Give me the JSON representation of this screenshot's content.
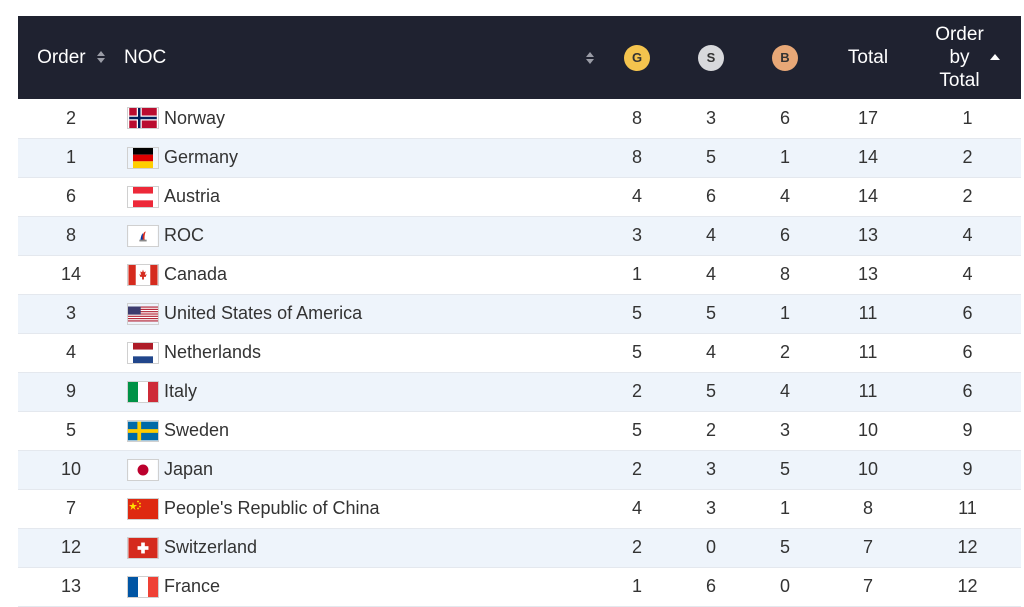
{
  "header": {
    "order": "Order",
    "noc": "NOC",
    "gold": "G",
    "silver": "S",
    "bronze": "B",
    "total": "Total",
    "order_by_total_l1": "Order",
    "order_by_total_l2": "by",
    "order_by_total_l3": "Total"
  },
  "rows": [
    {
      "order": "2",
      "noc": "Norway",
      "flag": "norway-flag",
      "g": "8",
      "s": "3",
      "b": "6",
      "total": "17",
      "rank": "1"
    },
    {
      "order": "1",
      "noc": "Germany",
      "flag": "germany-flag",
      "g": "8",
      "s": "5",
      "b": "1",
      "total": "14",
      "rank": "2"
    },
    {
      "order": "6",
      "noc": "Austria",
      "flag": "austria-flag",
      "g": "4",
      "s": "6",
      "b": "4",
      "total": "14",
      "rank": "2"
    },
    {
      "order": "8",
      "noc": "ROC",
      "flag": "roc-flag",
      "g": "3",
      "s": "4",
      "b": "6",
      "total": "13",
      "rank": "4"
    },
    {
      "order": "14",
      "noc": "Canada",
      "flag": "canada-flag",
      "g": "1",
      "s": "4",
      "b": "8",
      "total": "13",
      "rank": "4"
    },
    {
      "order": "3",
      "noc": "United States of America",
      "flag": "usa-flag",
      "g": "5",
      "s": "5",
      "b": "1",
      "total": "11",
      "rank": "6"
    },
    {
      "order": "4",
      "noc": "Netherlands",
      "flag": "netherlands-flag",
      "g": "5",
      "s": "4",
      "b": "2",
      "total": "11",
      "rank": "6"
    },
    {
      "order": "9",
      "noc": "Italy",
      "flag": "italy-flag",
      "g": "2",
      "s": "5",
      "b": "4",
      "total": "11",
      "rank": "6"
    },
    {
      "order": "5",
      "noc": "Sweden",
      "flag": "sweden-flag",
      "g": "5",
      "s": "2",
      "b": "3",
      "total": "10",
      "rank": "9"
    },
    {
      "order": "10",
      "noc": "Japan",
      "flag": "japan-flag",
      "g": "2",
      "s": "3",
      "b": "5",
      "total": "10",
      "rank": "9"
    },
    {
      "order": "7",
      "noc": "People's Republic of China",
      "flag": "china-flag",
      "g": "4",
      "s": "3",
      "b": "1",
      "total": "8",
      "rank": "11"
    },
    {
      "order": "12",
      "noc": "Switzerland",
      "flag": "switzerland-flag",
      "g": "2",
      "s": "0",
      "b": "5",
      "total": "7",
      "rank": "12"
    },
    {
      "order": "13",
      "noc": "France",
      "flag": "france-flag",
      "g": "1",
      "s": "6",
      "b": "0",
      "total": "7",
      "rank": "12"
    }
  ],
  "colors": {
    "header_bg": "#1f2230",
    "row_alt": "#eef4fb",
    "gold": "#f4c44e",
    "silver": "#d8d9dc",
    "bronze": "#e8a877"
  }
}
